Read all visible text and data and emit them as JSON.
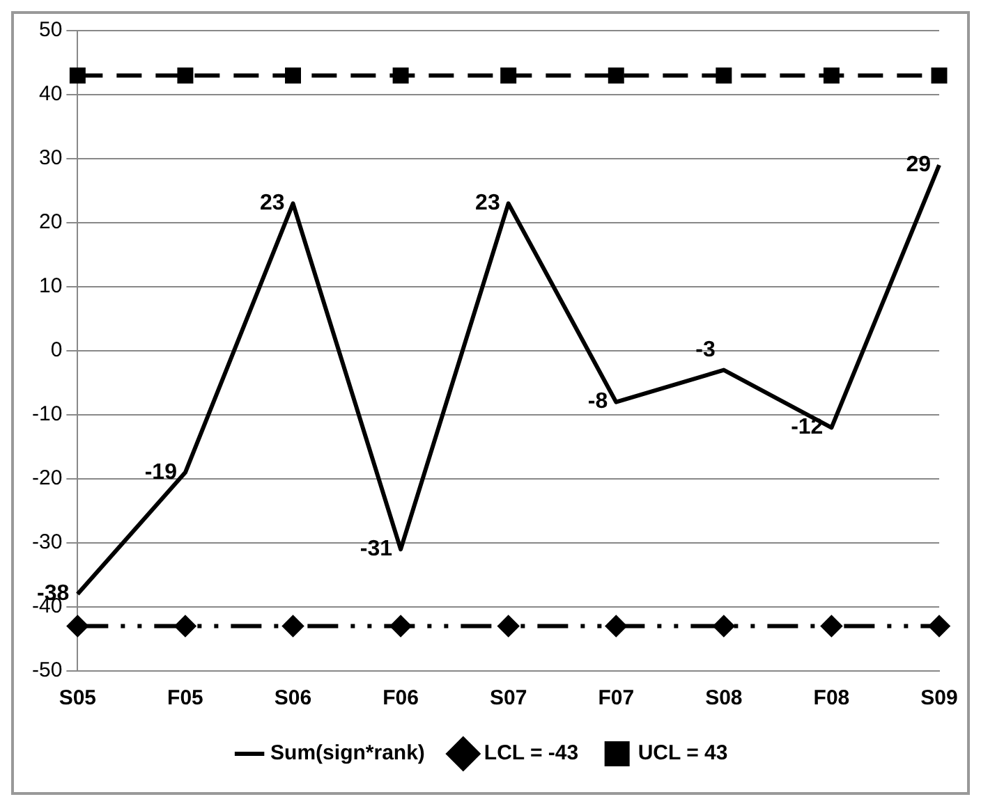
{
  "chart_data": {
    "type": "line",
    "categories": [
      "S05",
      "F05",
      "S06",
      "F06",
      "S07",
      "F07",
      "S08",
      "F08",
      "S09"
    ],
    "series": [
      {
        "name": "Sum(sign*rank)",
        "color": "#000000",
        "values": [
          -38,
          -19,
          23,
          -31,
          23,
          -8,
          -3,
          -12,
          29
        ],
        "value_labels": [
          "-38",
          "-19",
          "23",
          "-31",
          "23",
          "-8",
          "-3",
          "-12",
          "29"
        ],
        "marker": "none",
        "line_style": "solid"
      },
      {
        "name": "LCL = -43",
        "color": "#000000",
        "values": [
          -43,
          -43,
          -43,
          -43,
          -43,
          -43,
          -43,
          -43,
          -43
        ],
        "marker": "diamond",
        "line_style": "dotted"
      },
      {
        "name": "UCL = 43",
        "color": "#000000",
        "values": [
          43,
          43,
          43,
          43,
          43,
          43,
          43,
          43,
          43
        ],
        "marker": "square",
        "line_style": "dashed"
      }
    ],
    "ylim": [
      -50,
      50
    ],
    "yticks": [
      -50,
      -40,
      -30,
      -20,
      -10,
      0,
      10,
      20,
      30,
      40,
      50
    ],
    "grid": "y",
    "legend": "bottom"
  }
}
